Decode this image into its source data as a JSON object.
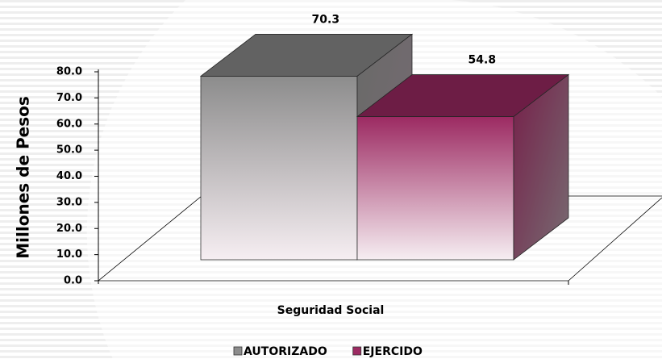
{
  "chart_data": {
    "type": "bar3d",
    "categories": [
      "Seguridad Social"
    ],
    "series": [
      {
        "name": "AUTORIZADO",
        "color": "#8c8c8c",
        "values": [
          70.3
        ]
      },
      {
        "name": "EJERCIDO",
        "color": "#9c2a62",
        "values": [
          54.8
        ]
      }
    ],
    "y_label": "Millones de Pesos",
    "ylim": [
      0,
      80
    ],
    "yticks": [
      {
        "value": 0,
        "label": "0.0"
      },
      {
        "value": 10,
        "label": "10.0"
      },
      {
        "value": 20,
        "label": "20.0"
      },
      {
        "value": 30,
        "label": "30.0"
      },
      {
        "value": 40,
        "label": "40.0"
      },
      {
        "value": 50,
        "label": "50.0"
      },
      {
        "value": 60,
        "label": "60.0"
      },
      {
        "value": 70,
        "label": "70.0"
      },
      {
        "value": 80,
        "label": "80.0"
      }
    ],
    "legend": "bottom"
  }
}
